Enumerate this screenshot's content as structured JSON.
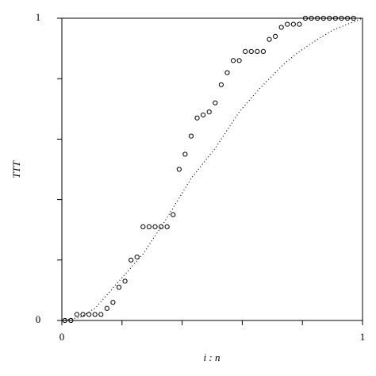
{
  "chart_data": {
    "type": "scatter",
    "xlabel": "i : n",
    "ylabel": "TTT",
    "xlim": [
      0,
      1
    ],
    "ylim": [
      0,
      1
    ],
    "xticks": [
      0,
      1
    ],
    "yticks": [
      0,
      1
    ],
    "xminorticks": [
      0.2,
      0.4,
      0.6,
      0.8
    ],
    "yminorticks": [
      0.2,
      0.4,
      0.6,
      0.8
    ],
    "series": [
      {
        "marker": "circle",
        "color": "#000",
        "x": [
          0.01,
          0.03,
          0.05,
          0.07,
          0.09,
          0.11,
          0.13,
          0.15,
          0.17,
          0.19,
          0.21,
          0.23,
          0.25,
          0.27,
          0.29,
          0.31,
          0.33,
          0.35,
          0.37,
          0.39,
          0.41,
          0.43,
          0.45,
          0.47,
          0.49,
          0.51,
          0.53,
          0.55,
          0.57,
          0.59,
          0.61,
          0.63,
          0.65,
          0.67,
          0.69,
          0.71,
          0.73,
          0.75,
          0.77,
          0.79,
          0.81,
          0.83,
          0.85,
          0.87,
          0.89,
          0.91,
          0.93,
          0.95,
          0.97
        ],
        "values": [
          0,
          0,
          0.02,
          0.02,
          0.02,
          0.02,
          0.02,
          0.04,
          0.06,
          0.11,
          0.13,
          0.2,
          0.21,
          0.31,
          0.31,
          0.31,
          0.31,
          0.31,
          0.35,
          0.5,
          0.55,
          0.61,
          0.67,
          0.68,
          0.69,
          0.72,
          0.78,
          0.82,
          0.86,
          0.86,
          0.89,
          0.89,
          0.89,
          0.89,
          0.93,
          0.94,
          0.97,
          0.98,
          0.98,
          0.98,
          1,
          1,
          1,
          1,
          1,
          1,
          1,
          1,
          1
        ]
      },
      {
        "style": "dotted",
        "color": "#000",
        "x": [
          0,
          0.06,
          0.11,
          0.19,
          0.27,
          0.35,
          0.43,
          0.51,
          0.59,
          0.66,
          0.74,
          0.79,
          0.85,
          0.9,
          0.95,
          1
        ],
        "values": [
          0,
          0.01,
          0.04,
          0.13,
          0.22,
          0.34,
          0.47,
          0.57,
          0.69,
          0.77,
          0.85,
          0.89,
          0.93,
          0.96,
          0.98,
          1
        ]
      }
    ]
  }
}
